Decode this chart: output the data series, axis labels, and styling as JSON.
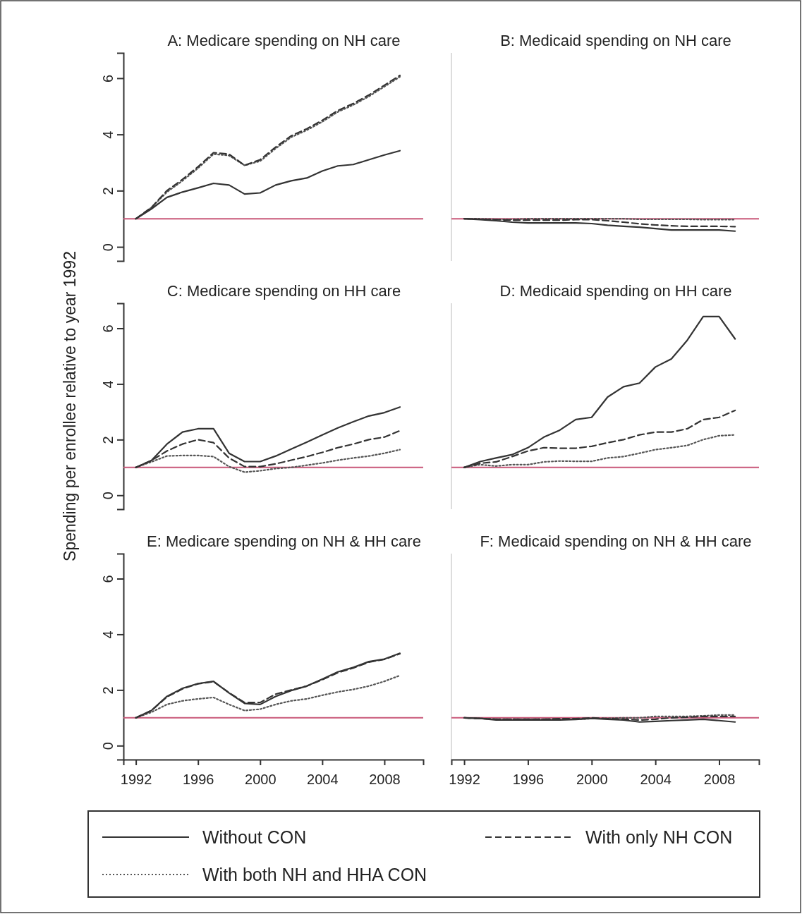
{
  "chart_data": [
    {
      "type": "line",
      "title": "A: Medicare spending on NH care",
      "x": [
        1992,
        1993,
        1994,
        1995,
        1996,
        1997,
        1998,
        1999,
        2000,
        2001,
        2002,
        2003,
        2004,
        2005,
        2006,
        2007,
        2008,
        2009
      ],
      "xlim": [
        1991.2,
        2010.5
      ],
      "ylim": [
        -0.5,
        6.9
      ],
      "yticks": [
        0,
        2,
        4,
        6
      ],
      "tick_labels": "y",
      "legend": "bottom",
      "ref_lines": [
        {
          "axis": "y",
          "value": 1,
          "color": "#c9587a"
        }
      ],
      "series": [
        {
          "name": "Without CON",
          "color": "#333333",
          "line_style": "solid",
          "values": [
            1.0,
            1.35,
            1.76,
            1.95,
            2.1,
            2.26,
            2.2,
            1.88,
            1.92,
            2.2,
            2.35,
            2.45,
            2.7,
            2.88,
            2.93,
            3.1,
            3.27,
            3.42
          ]
        },
        {
          "name": "With only NH CON",
          "color": "#333333",
          "line_style": "dashed",
          "values": [
            1.0,
            1.4,
            2.0,
            2.4,
            2.85,
            3.35,
            3.3,
            2.9,
            3.1,
            3.55,
            3.95,
            4.2,
            4.5,
            4.85,
            5.1,
            5.4,
            5.75,
            6.1
          ]
        },
        {
          "name": "With both NH and HHA CON",
          "color": "#555555",
          "line_style": "dotted",
          "values": [
            1.0,
            1.4,
            1.95,
            2.35,
            2.8,
            3.3,
            3.25,
            2.9,
            3.05,
            3.5,
            3.9,
            4.15,
            4.45,
            4.8,
            5.05,
            5.35,
            5.7,
            6.05
          ]
        }
      ]
    },
    {
      "type": "line",
      "title": "B: Medicaid spending on NH care",
      "x": [
        1992,
        1993,
        1994,
        1995,
        1996,
        1997,
        1998,
        1999,
        2000,
        2001,
        2002,
        2003,
        2004,
        2005,
        2006,
        2007,
        2008,
        2009
      ],
      "xlim": [
        1991.2,
        2010.5
      ],
      "ylim": [
        -0.5,
        6.9
      ],
      "tick_labels": false,
      "ref_lines": [
        {
          "axis": "y",
          "value": 1,
          "color": "#c9587a"
        }
      ],
      "series": [
        {
          "color": "#333333",
          "line_style": "solid",
          "values": [
            1.0,
            0.97,
            0.93,
            0.88,
            0.85,
            0.85,
            0.85,
            0.85,
            0.83,
            0.77,
            0.73,
            0.7,
            0.65,
            0.6,
            0.6,
            0.6,
            0.6,
            0.56
          ]
        },
        {
          "color": "#333333",
          "line_style": "dashed",
          "values": [
            1.0,
            0.98,
            0.97,
            0.95,
            0.95,
            0.95,
            0.95,
            0.97,
            0.97,
            0.93,
            0.88,
            0.82,
            0.78,
            0.75,
            0.73,
            0.73,
            0.73,
            0.72
          ]
        },
        {
          "color": "#555555",
          "line_style": "dotted",
          "values": [
            1.0,
            1.0,
            0.98,
            0.98,
            1.0,
            1.0,
            1.0,
            1.0,
            1.0,
            1.0,
            1.0,
            0.98,
            0.98,
            0.98,
            0.98,
            0.97,
            0.97,
            0.97
          ]
        }
      ]
    },
    {
      "type": "line",
      "title": "C: Medicare spending on HH care",
      "ylabel": "Spending per enrollee relative to year 1992",
      "x": [
        1992,
        1993,
        1994,
        1995,
        1996,
        1997,
        1998,
        1999,
        2000,
        2001,
        2002,
        2003,
        2004,
        2005,
        2006,
        2007,
        2008,
        2009
      ],
      "xlim": [
        1991.2,
        2010.5
      ],
      "ylim": [
        -0.5,
        6.9
      ],
      "yticks": [
        0,
        2,
        4,
        6
      ],
      "tick_labels": "y",
      "ref_lines": [
        {
          "axis": "y",
          "value": 1,
          "color": "#c9587a"
        }
      ],
      "series": [
        {
          "color": "#333333",
          "line_style": "solid",
          "values": [
            1.0,
            1.25,
            1.84,
            2.27,
            2.39,
            2.39,
            1.51,
            1.21,
            1.21,
            1.41,
            1.66,
            1.91,
            2.17,
            2.42,
            2.64,
            2.85,
            2.97,
            3.17
          ]
        },
        {
          "color": "#333333",
          "line_style": "dashed",
          "values": [
            1.0,
            1.25,
            1.59,
            1.84,
            2.0,
            1.89,
            1.34,
            1.03,
            1.03,
            1.13,
            1.26,
            1.39,
            1.54,
            1.71,
            1.84,
            2.0,
            2.09,
            2.32
          ]
        },
        {
          "color": "#555555",
          "line_style": "dotted",
          "values": [
            1.0,
            1.2,
            1.41,
            1.43,
            1.43,
            1.39,
            1.03,
            0.83,
            0.88,
            0.96,
            1.0,
            1.08,
            1.16,
            1.26,
            1.34,
            1.41,
            1.51,
            1.64
          ]
        }
      ]
    },
    {
      "type": "line",
      "title": "D: Medicaid spending on HH care",
      "x": [
        1992,
        1993,
        1994,
        1995,
        1996,
        1997,
        1998,
        1999,
        2000,
        2001,
        2002,
        2003,
        2004,
        2005,
        2006,
        2007,
        2008,
        2009
      ],
      "xlim": [
        1991.2,
        2010.5
      ],
      "ylim": [
        -0.5,
        6.9
      ],
      "tick_labels": false,
      "ref_lines": [
        {
          "axis": "y",
          "value": 1,
          "color": "#c9587a"
        }
      ],
      "series": [
        {
          "color": "#333333",
          "line_style": "solid",
          "values": [
            1.0,
            1.21,
            1.34,
            1.46,
            1.71,
            2.09,
            2.34,
            2.72,
            2.8,
            3.53,
            3.9,
            4.03,
            4.61,
            4.9,
            5.57,
            6.42,
            6.42,
            5.62
          ]
        },
        {
          "color": "#333333",
          "line_style": "dashed",
          "values": [
            1.0,
            1.15,
            1.2,
            1.39,
            1.59,
            1.71,
            1.69,
            1.69,
            1.76,
            1.89,
            2.0,
            2.17,
            2.27,
            2.27,
            2.39,
            2.72,
            2.8,
            3.05
          ]
        },
        {
          "color": "#555555",
          "line_style": "dotted",
          "values": [
            1.0,
            1.1,
            1.05,
            1.1,
            1.1,
            1.2,
            1.23,
            1.22,
            1.22,
            1.34,
            1.39,
            1.51,
            1.64,
            1.71,
            1.79,
            2.0,
            2.14,
            2.17
          ]
        }
      ]
    },
    {
      "type": "line",
      "title": "E: Medicare spending on NH & HH care",
      "x": [
        1992,
        1993,
        1994,
        1995,
        1996,
        1997,
        1998,
        1999,
        2000,
        2001,
        2002,
        2003,
        2004,
        2005,
        2006,
        2007,
        2008,
        2009
      ],
      "xlim": [
        1991.2,
        2010.5
      ],
      "xticks": [
        1992,
        1996,
        2000,
        2004,
        2008
      ],
      "ylim": [
        -0.5,
        6.9
      ],
      "yticks": [
        0,
        2,
        4,
        6
      ],
      "ref_lines": [
        {
          "axis": "y",
          "value": 1,
          "color": "#c9587a"
        }
      ],
      "series": [
        {
          "color": "#333333",
          "line_style": "solid",
          "values": [
            1.0,
            1.26,
            1.77,
            2.06,
            2.23,
            2.31,
            1.89,
            1.52,
            1.48,
            1.77,
            1.98,
            2.14,
            2.39,
            2.65,
            2.81,
            3.02,
            3.11,
            3.32
          ]
        },
        {
          "color": "#333333",
          "line_style": "dashed",
          "values": [
            1.0,
            1.26,
            1.75,
            2.04,
            2.22,
            2.3,
            1.9,
            1.55,
            1.55,
            1.85,
            2.0,
            2.14,
            2.37,
            2.62,
            2.79,
            3.0,
            3.1,
            3.3
          ]
        },
        {
          "color": "#555555",
          "line_style": "dotted",
          "values": [
            1.0,
            1.2,
            1.48,
            1.61,
            1.68,
            1.73,
            1.48,
            1.26,
            1.31,
            1.48,
            1.61,
            1.68,
            1.81,
            1.93,
            2.02,
            2.14,
            2.31,
            2.52
          ]
        }
      ]
    },
    {
      "type": "line",
      "title": "F: Medicaid spending on NH & HH care",
      "x": [
        1992,
        1993,
        1994,
        1995,
        1996,
        1997,
        1998,
        1999,
        2000,
        2001,
        2002,
        2003,
        2004,
        2005,
        2006,
        2007,
        2008,
        2009
      ],
      "xlim": [
        1991.2,
        2010.5
      ],
      "xticks": [
        1992,
        1996,
        2000,
        2004,
        2008
      ],
      "ylim": [
        -0.5,
        6.9
      ],
      "tick_labels": "x",
      "ref_lines": [
        {
          "axis": "y",
          "value": 1,
          "color": "#c9587a"
        }
      ],
      "series": [
        {
          "color": "#333333",
          "line_style": "solid",
          "values": [
            1.0,
            0.98,
            0.92,
            0.92,
            0.92,
            0.92,
            0.92,
            0.94,
            0.98,
            0.95,
            0.92,
            0.85,
            0.87,
            0.9,
            0.92,
            0.95,
            0.9,
            0.85
          ]
        },
        {
          "color": "#333333",
          "line_style": "dashed",
          "values": [
            1.0,
            0.97,
            0.95,
            0.95,
            0.95,
            0.95,
            0.97,
            0.97,
            1.0,
            0.97,
            0.95,
            0.92,
            0.95,
            1.0,
            1.02,
            1.05,
            1.05,
            1.05
          ]
        },
        {
          "color": "#555555",
          "line_style": "dotted",
          "values": [
            1.0,
            0.98,
            0.95,
            0.95,
            0.95,
            0.95,
            0.95,
            0.95,
            0.97,
            0.98,
            1.0,
            1.0,
            1.05,
            1.05,
            1.05,
            1.07,
            1.1,
            1.1
          ]
        }
      ]
    }
  ]
}
